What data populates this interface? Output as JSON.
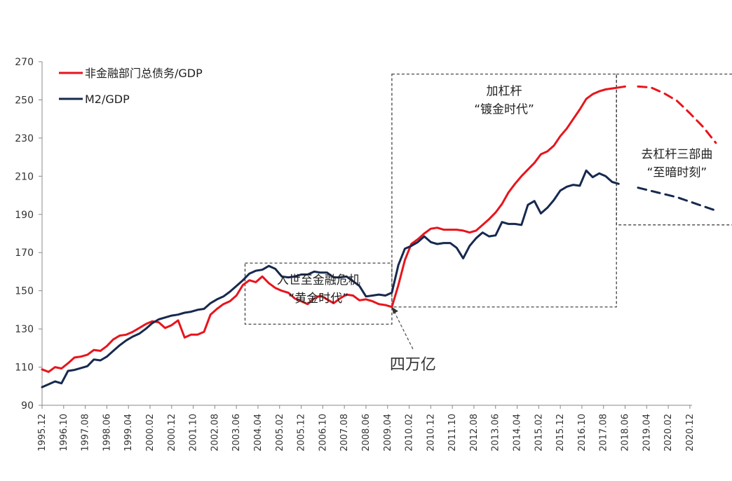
{
  "chart_data": {
    "type": "line",
    "title": "",
    "xlabel": "",
    "ylabel": "",
    "ylim": [
      90,
      270
    ],
    "yticks": [
      90,
      110,
      130,
      150,
      170,
      190,
      210,
      230,
      250,
      270
    ],
    "x_range": [
      1995.917,
      2021.0
    ],
    "xtick_labels": [
      "1995.12",
      "1996.10",
      "1997.08",
      "1998.06",
      "1999.04",
      "2000.02",
      "2000.12",
      "2001.10",
      "2002.08",
      "2003.06",
      "2004.04",
      "2005.02",
      "2005.12",
      "2006.10",
      "2007.08",
      "2008.06",
      "2009.04",
      "2010.02",
      "2010.12",
      "2011.10",
      "2012.08",
      "2013.06",
      "2014.04",
      "2015.02",
      "2015.12",
      "2016.10",
      "2017.08",
      "2018.06",
      "2019.04",
      "2020.02",
      "2020.12"
    ],
    "grid": false,
    "legend_position": "top-left",
    "series": [
      {
        "name": "非金融部门总债务/GDP",
        "color": "#e8141c",
        "style": "solid",
        "points": [
          [
            1995.917,
            108.8
          ],
          [
            1996.167,
            107.5
          ],
          [
            1996.417,
            110.0
          ],
          [
            1996.667,
            109.3
          ],
          [
            1996.917,
            112.0
          ],
          [
            1997.167,
            115.0
          ],
          [
            1997.417,
            115.5
          ],
          [
            1997.667,
            116.5
          ],
          [
            1997.917,
            119.0
          ],
          [
            1998.167,
            118.5
          ],
          [
            1998.417,
            121.0
          ],
          [
            1998.667,
            124.5
          ],
          [
            1998.917,
            126.5
          ],
          [
            1999.167,
            127.0
          ],
          [
            1999.417,
            128.5
          ],
          [
            1999.667,
            130.5
          ],
          [
            1999.917,
            132.5
          ],
          [
            2000.167,
            134.0
          ],
          [
            2000.417,
            133.5
          ],
          [
            2000.667,
            130.5
          ],
          [
            2000.917,
            132.0
          ],
          [
            2001.167,
            134.5
          ],
          [
            2001.417,
            125.5
          ],
          [
            2001.667,
            127.0
          ],
          [
            2001.917,
            127.0
          ],
          [
            2002.167,
            128.5
          ],
          [
            2002.417,
            137.5
          ],
          [
            2002.667,
            140.5
          ],
          [
            2002.917,
            143.0
          ],
          [
            2003.167,
            144.5
          ],
          [
            2003.417,
            147.5
          ],
          [
            2003.667,
            153.0
          ],
          [
            2003.917,
            155.5
          ],
          [
            2004.167,
            154.5
          ],
          [
            2004.417,
            157.5
          ],
          [
            2004.667,
            154.0
          ],
          [
            2004.917,
            151.5
          ],
          [
            2005.167,
            150.0
          ],
          [
            2005.417,
            149.0
          ],
          [
            2005.667,
            146.0
          ],
          [
            2005.917,
            144.5
          ],
          [
            2006.167,
            143.0
          ],
          [
            2006.417,
            146.0
          ],
          [
            2006.667,
            147.5
          ],
          [
            2006.917,
            145.5
          ],
          [
            2007.167,
            143.5
          ],
          [
            2007.417,
            146.0
          ],
          [
            2007.667,
            148.0
          ],
          [
            2007.917,
            147.5
          ],
          [
            2008.167,
            145.0
          ],
          [
            2008.417,
            145.5
          ],
          [
            2008.667,
            144.5
          ],
          [
            2008.917,
            143.0
          ],
          [
            2009.167,
            142.5
          ],
          [
            2009.417,
            141.5
          ],
          [
            2009.667,
            153.0
          ],
          [
            2009.917,
            166.0
          ],
          [
            2010.167,
            174.5
          ],
          [
            2010.417,
            177.0
          ],
          [
            2010.667,
            180.0
          ],
          [
            2010.917,
            182.5
          ],
          [
            2011.167,
            183.0
          ],
          [
            2011.417,
            182.0
          ],
          [
            2011.667,
            182.0
          ],
          [
            2011.917,
            182.0
          ],
          [
            2012.167,
            181.5
          ],
          [
            2012.417,
            180.5
          ],
          [
            2012.667,
            181.5
          ],
          [
            2012.917,
            184.5
          ],
          [
            2013.167,
            187.5
          ],
          [
            2013.417,
            191.0
          ],
          [
            2013.667,
            195.5
          ],
          [
            2013.917,
            201.5
          ],
          [
            2014.167,
            206.0
          ],
          [
            2014.417,
            210.0
          ],
          [
            2014.667,
            213.5
          ],
          [
            2014.917,
            217.0
          ],
          [
            2015.167,
            221.5
          ],
          [
            2015.417,
            223.0
          ],
          [
            2015.667,
            226.0
          ],
          [
            2015.917,
            231.0
          ],
          [
            2016.167,
            235.0
          ],
          [
            2016.417,
            240.0
          ],
          [
            2016.667,
            245.0
          ],
          [
            2016.917,
            250.5
          ],
          [
            2017.167,
            253.0
          ],
          [
            2017.417,
            254.5
          ],
          [
            2017.667,
            255.5
          ],
          [
            2017.917,
            256.0
          ],
          [
            2018.167,
            256.5
          ],
          [
            2018.417,
            257.0
          ]
        ]
      },
      {
        "name": "M2/GDP",
        "color": "#16294f",
        "style": "solid",
        "points": [
          [
            1995.917,
            99.5
          ],
          [
            1996.167,
            101.0
          ],
          [
            1996.417,
            102.5
          ],
          [
            1996.667,
            101.5
          ],
          [
            1996.917,
            108.0
          ],
          [
            1997.167,
            108.5
          ],
          [
            1997.417,
            109.5
          ],
          [
            1997.667,
            110.5
          ],
          [
            1997.917,
            114.0
          ],
          [
            1998.167,
            113.5
          ],
          [
            1998.417,
            115.5
          ],
          [
            1998.667,
            118.5
          ],
          [
            1998.917,
            121.5
          ],
          [
            1999.167,
            124.0
          ],
          [
            1999.417,
            126.0
          ],
          [
            1999.667,
            127.5
          ],
          [
            1999.917,
            130.0
          ],
          [
            2000.167,
            133.0
          ],
          [
            2000.417,
            135.0
          ],
          [
            2000.667,
            136.0
          ],
          [
            2000.917,
            137.0
          ],
          [
            2001.167,
            137.5
          ],
          [
            2001.417,
            138.5
          ],
          [
            2001.667,
            139.0
          ],
          [
            2001.917,
            140.0
          ],
          [
            2002.167,
            140.5
          ],
          [
            2002.417,
            143.5
          ],
          [
            2002.667,
            145.5
          ],
          [
            2002.917,
            147.0
          ],
          [
            2003.167,
            149.5
          ],
          [
            2003.417,
            152.5
          ],
          [
            2003.667,
            155.5
          ],
          [
            2003.917,
            159.0
          ],
          [
            2004.167,
            160.5
          ],
          [
            2004.417,
            161.0
          ],
          [
            2004.667,
            163.0
          ],
          [
            2004.917,
            161.5
          ],
          [
            2005.167,
            157.5
          ],
          [
            2005.417,
            157.0
          ],
          [
            2005.667,
            157.5
          ],
          [
            2005.917,
            158.5
          ],
          [
            2006.167,
            158.5
          ],
          [
            2006.417,
            160.0
          ],
          [
            2006.667,
            159.5
          ],
          [
            2006.917,
            159.5
          ],
          [
            2007.167,
            157.0
          ],
          [
            2007.417,
            157.0
          ],
          [
            2007.667,
            157.5
          ],
          [
            2007.917,
            155.0
          ],
          [
            2008.167,
            152.5
          ],
          [
            2008.417,
            147.0
          ],
          [
            2008.667,
            147.5
          ],
          [
            2008.917,
            148.0
          ],
          [
            2009.167,
            147.5
          ],
          [
            2009.417,
            149.0
          ],
          [
            2009.667,
            163.5
          ],
          [
            2009.917,
            172.0
          ],
          [
            2010.167,
            173.5
          ],
          [
            2010.417,
            175.5
          ],
          [
            2010.667,
            178.5
          ],
          [
            2010.917,
            175.5
          ],
          [
            2011.167,
            174.5
          ],
          [
            2011.417,
            175.0
          ],
          [
            2011.667,
            175.0
          ],
          [
            2011.917,
            172.5
          ],
          [
            2012.167,
            167.0
          ],
          [
            2012.417,
            173.5
          ],
          [
            2012.667,
            177.5
          ],
          [
            2012.917,
            180.5
          ],
          [
            2013.167,
            178.5
          ],
          [
            2013.417,
            179.0
          ],
          [
            2013.667,
            186.0
          ],
          [
            2013.917,
            185.0
          ],
          [
            2014.167,
            185.0
          ],
          [
            2014.417,
            184.5
          ],
          [
            2014.667,
            195.0
          ],
          [
            2014.917,
            197.0
          ],
          [
            2015.167,
            190.5
          ],
          [
            2015.417,
            193.5
          ],
          [
            2015.667,
            197.5
          ],
          [
            2015.917,
            202.5
          ],
          [
            2016.167,
            204.5
          ],
          [
            2016.417,
            205.5
          ],
          [
            2016.667,
            205.0
          ],
          [
            2016.917,
            213.0
          ],
          [
            2017.167,
            209.5
          ],
          [
            2017.417,
            211.5
          ],
          [
            2017.667,
            210.0
          ],
          [
            2017.917,
            207.0
          ],
          [
            2018.167,
            206.0
          ]
        ]
      },
      {
        "name": "",
        "color": "#e8141c",
        "style": "dashed",
        "points": [
          [
            2018.917,
            257.0
          ],
          [
            2019.417,
            256.5
          ],
          [
            2019.917,
            253.5
          ],
          [
            2020.417,
            249.5
          ],
          [
            2020.917,
            243.0
          ],
          [
            2021.417,
            236.0
          ],
          [
            2021.917,
            227.5
          ]
        ]
      },
      {
        "name": "",
        "color": "#16294f",
        "style": "dashed",
        "points": [
          [
            2018.917,
            204.0
          ],
          [
            2019.667,
            201.5
          ],
          [
            2020.417,
            199.0
          ],
          [
            2021.167,
            195.5
          ],
          [
            2021.917,
            192.0
          ]
        ]
      }
    ],
    "annotations": [
      {
        "lines": [
          "入世至金融危机",
          "“黄金时代”"
        ],
        "box": [
          [
            2003.75,
            132.5
          ],
          [
            2009.417,
            164.5
          ]
        ]
      },
      {
        "lines": [
          "加杠杆",
          "“镀金时代”"
        ],
        "box": [
          [
            2009.417,
            141.5
          ],
          [
            2018.083,
            263.5
          ]
        ]
      },
      {
        "lines": [
          "去杠杆三部曲",
          "“至暗时刻”"
        ],
        "box": [
          [
            2018.083,
            184.5
          ],
          [
            2022.75,
            263.5
          ]
        ]
      },
      {
        "lines": [
          "四万亿"
        ],
        "arrow_to": [
          2009.417,
          141.5
        ]
      }
    ]
  }
}
